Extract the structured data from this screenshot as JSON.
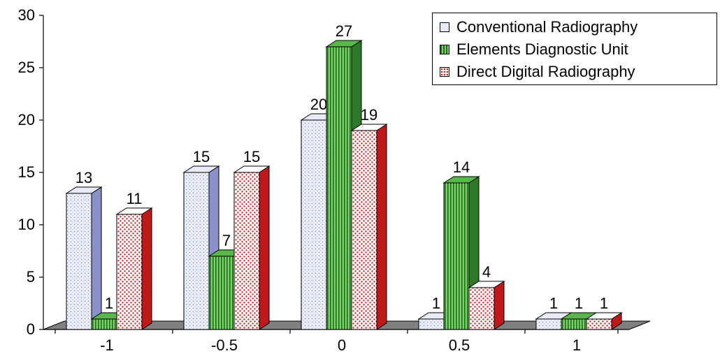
{
  "chart_data": {
    "type": "bar",
    "categories": [
      "-1",
      "-0.5",
      "0",
      "0.5",
      "1"
    ],
    "series": [
      {
        "name": "Conventional Radiography",
        "values": [
          13,
          15,
          20,
          1,
          1
        ],
        "color": "#e8eaf8",
        "side": "#8a90c8",
        "pattern": "dots"
      },
      {
        "name": "Elements Diagnostic Unit",
        "values": [
          1,
          7,
          27,
          14,
          1
        ],
        "color": "#58b84a",
        "side": "#2f7a26",
        "pattern": "stripes"
      },
      {
        "name": "Direct Digital Radiography",
        "values": [
          11,
          15,
          19,
          4,
          1
        ],
        "color": "#ffffff",
        "side": "#c01818",
        "pattern": "reddots"
      }
    ],
    "yticks": [
      "0",
      "5",
      "10",
      "15",
      "20",
      "25",
      "30"
    ],
    "ylim": [
      0,
      30
    ],
    "grid": false,
    "legend_position": "top-right",
    "floor_color": "#808080"
  }
}
